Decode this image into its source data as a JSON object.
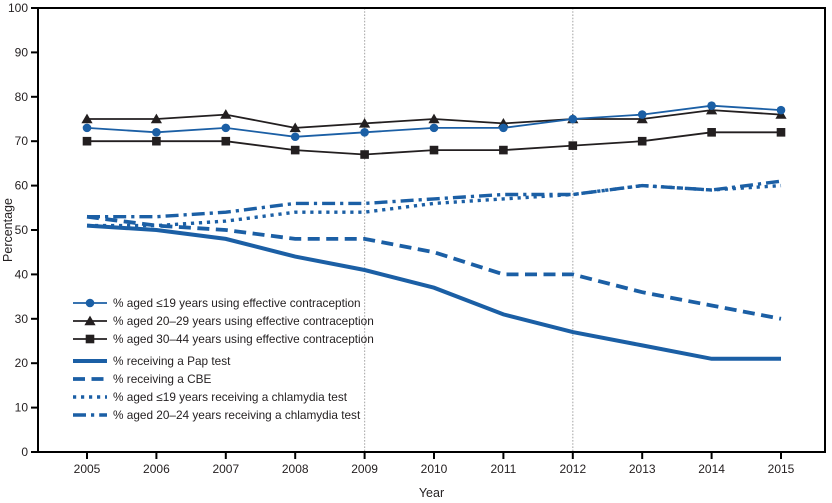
{
  "chart_data": {
    "type": "line",
    "title": "",
    "xlabel": "Year",
    "ylabel": "Percentage",
    "x": [
      2005,
      2006,
      2007,
      2008,
      2009,
      2010,
      2011,
      2012,
      2013,
      2014,
      2015
    ],
    "yticks": [
      0,
      10,
      20,
      30,
      40,
      50,
      60,
      70,
      80,
      90,
      100
    ],
    "ylim": [
      0,
      100
    ],
    "grid_vertical_at": [
      2009,
      2012
    ],
    "legend_position": "inside-left-middle",
    "colors": {
      "blue": "#1b5fa5",
      "black": "#231f20",
      "grid": "#b3b3b3",
      "axis": "#000000"
    },
    "series": [
      {
        "name": "% aged ≤19 years using effective contraception",
        "color": "blue",
        "line": "solid-thin",
        "marker": "circle",
        "values": [
          73,
          72,
          73,
          71,
          72,
          73,
          73,
          75,
          76,
          78,
          77
        ]
      },
      {
        "name": "% aged 20–29  years using effective contraception",
        "color": "black",
        "line": "solid-thin",
        "marker": "triangle",
        "values": [
          75,
          75,
          76,
          73,
          74,
          75,
          74,
          75,
          75,
          77,
          76
        ]
      },
      {
        "name": "% aged 30–44  years using effective contraception",
        "color": "black",
        "line": "solid-thin",
        "marker": "square",
        "values": [
          70,
          70,
          70,
          68,
          67,
          68,
          68,
          69,
          70,
          72,
          72
        ]
      },
      {
        "name": "% receiving a Pap test",
        "color": "blue",
        "line": "solid-thick",
        "marker": "none",
        "values": [
          51,
          50,
          48,
          44,
          41,
          37,
          31,
          27,
          24,
          21,
          21
        ]
      },
      {
        "name": "% receiving a CBE",
        "color": "blue",
        "line": "dashed",
        "marker": "none",
        "values": [
          53,
          51,
          50,
          48,
          48,
          45,
          40,
          40,
          36,
          33,
          30
        ]
      },
      {
        "name": "% aged ≤19 years receiving a chlamydia test",
        "color": "blue",
        "line": "dotted",
        "marker": "none",
        "values": [
          51,
          51,
          52,
          54,
          54,
          56,
          57,
          58,
          60,
          59,
          60
        ]
      },
      {
        "name": "% aged 20–24 years receiving a chlamydia test",
        "color": "blue",
        "line": "dashdot",
        "marker": "none",
        "values": [
          53,
          53,
          54,
          56,
          56,
          57,
          58,
          58,
          60,
          59,
          61
        ]
      }
    ]
  }
}
